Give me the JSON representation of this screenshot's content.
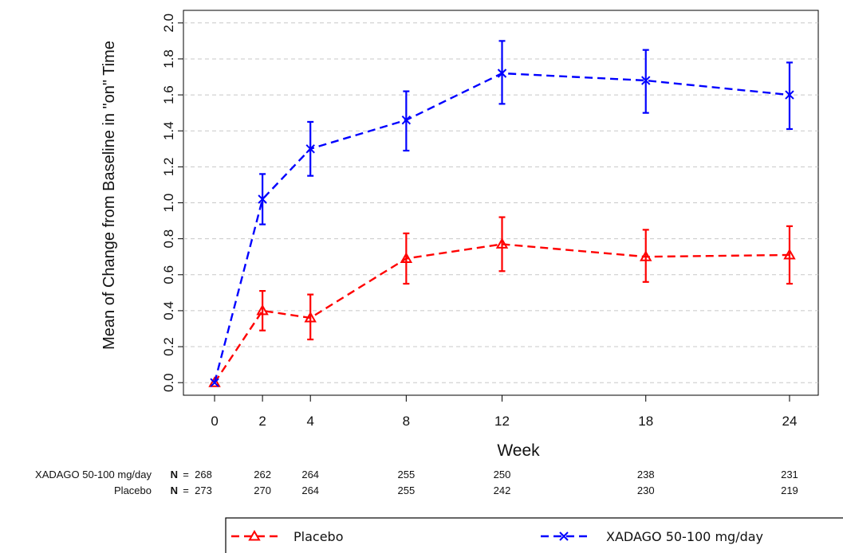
{
  "chart_data": {
    "type": "line",
    "xlabel": "Week",
    "ylabel": "Mean of Change from Baseline in \"on\" Time",
    "x": [
      0,
      2,
      4,
      8,
      12,
      18,
      24
    ],
    "x_tick_labels": [
      "0",
      "2",
      "4",
      "8",
      "12",
      "18",
      "24"
    ],
    "xlim": [
      -1.3,
      25.2
    ],
    "ylim": [
      -0.07,
      2.07
    ],
    "y_ticks": [
      "0.0",
      "0.2",
      "0.4",
      "0.6",
      "0.8",
      "1.0",
      "1.2",
      "1.4",
      "1.6",
      "1.8",
      "2.0"
    ],
    "grid": "horizontal dashed",
    "series": [
      {
        "name": "Placebo",
        "color": "#ff0000",
        "marker": "triangle",
        "values": [
          0.0,
          0.4,
          0.36,
          0.69,
          0.77,
          0.7,
          0.71
        ],
        "lower": [
          0.0,
          0.29,
          0.24,
          0.55,
          0.62,
          0.56,
          0.55
        ],
        "upper": [
          0.0,
          0.51,
          0.49,
          0.83,
          0.92,
          0.85,
          0.87
        ]
      },
      {
        "name": "XADAGO 50-100 mg/day",
        "color": "#0000ff",
        "marker": "x",
        "values": [
          0.0,
          1.02,
          1.3,
          1.46,
          1.72,
          1.68,
          1.6
        ],
        "lower": [
          0.0,
          0.88,
          1.15,
          1.29,
          1.55,
          1.5,
          1.41
        ],
        "upper": [
          0.0,
          1.16,
          1.45,
          1.62,
          1.9,
          1.85,
          1.78
        ]
      }
    ],
    "n_table": [
      {
        "label": "XADAGO 50-100 mg/day",
        "n_prefix": "N",
        "eq": "=",
        "counts": [
          "268",
          "262",
          "264",
          "255",
          "250",
          "238",
          "231"
        ]
      },
      {
        "label": "Placebo",
        "n_prefix": "N",
        "eq": "=",
        "counts": [
          "273",
          "270",
          "264",
          "255",
          "242",
          "230",
          "219"
        ]
      }
    ],
    "legend": {
      "placement": "bottom",
      "entries": [
        "Placebo",
        "XADAGO 50-100 mg/day"
      ]
    }
  }
}
